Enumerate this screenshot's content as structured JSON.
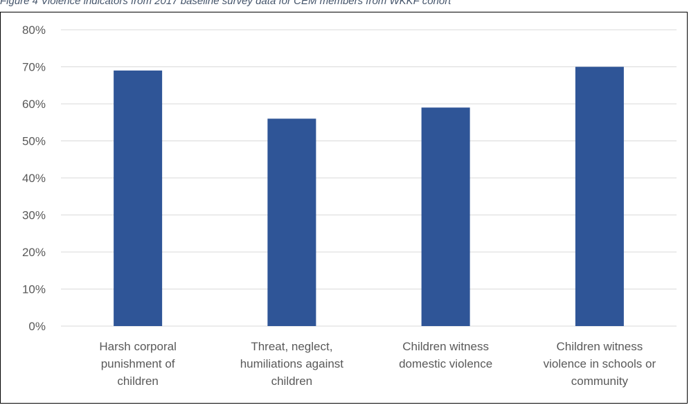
{
  "caption": "Figure 4 Violence indicators from 2017 baseline survey data for CEM members from WKKF cohort",
  "chart_data": {
    "type": "bar",
    "title": "",
    "xlabel": "",
    "ylabel": "",
    "ylim": [
      0,
      0.8
    ],
    "yticks": [
      "0%",
      "10%",
      "20%",
      "30%",
      "40%",
      "50%",
      "60%",
      "70%",
      "80%"
    ],
    "grid": true,
    "bar_color": "#2f5597",
    "categories": [
      [
        "Harsh corporal",
        "punishment of",
        "children"
      ],
      [
        "Threat, neglect,",
        "humiliations against",
        "children"
      ],
      [
        "Children witness",
        "domestic violence"
      ],
      [
        "Children witness",
        "violence in schools or",
        "community"
      ]
    ],
    "values": [
      0.69,
      0.56,
      0.59,
      0.7
    ]
  }
}
